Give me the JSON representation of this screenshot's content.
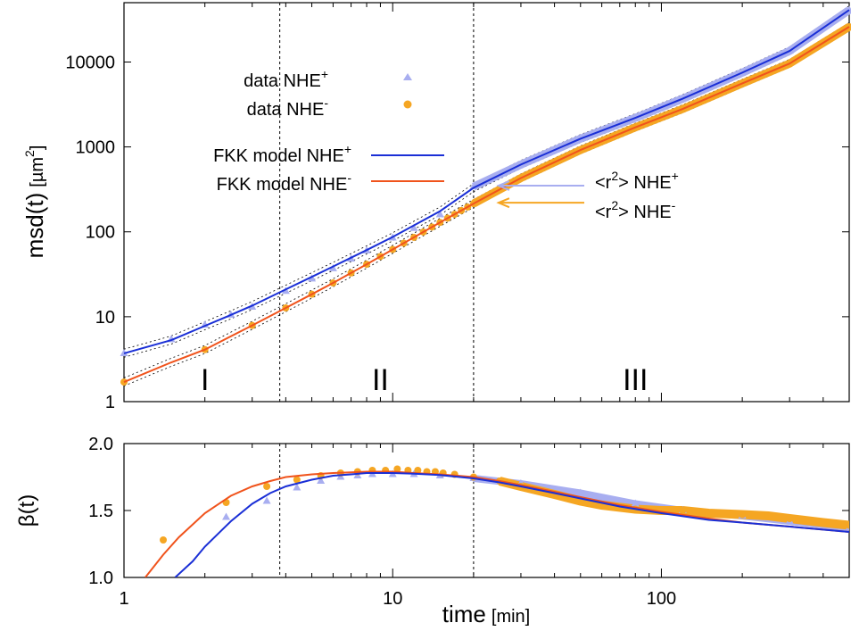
{
  "chart_data": [
    {
      "type": "line",
      "name_hint": "msd panel",
      "yscale": "log",
      "xscale": "log",
      "ylabel_main": "msd(t)",
      "ylabel_unit": "[µm",
      "ylabel_unit_sup": "2",
      "ylabel_unit_close": "]",
      "xlim": [
        1,
        500
      ],
      "ylim": [
        1,
        50000
      ],
      "yticks": [
        1,
        10,
        100,
        1000,
        10000
      ],
      "ytick_labels": [
        "1",
        "10",
        "100",
        "1000",
        "10000"
      ],
      "grid": false,
      "regions": [
        {
          "label": "I",
          "x": 2
        },
        {
          "label": "II",
          "x": 9
        },
        {
          "label": "III",
          "x": 80
        }
      ],
      "region_boundaries": [
        3.8,
        20
      ],
      "legend": [
        {
          "text": "data NHE",
          "sup": "+",
          "marker": "triangle",
          "color": "#a8aef0"
        },
        {
          "text": "data NHE",
          "sup": "-",
          "marker": "circle",
          "color": "#f5a623"
        },
        {
          "text": "FKK model NHE",
          "sup": "+",
          "marker": "line",
          "color": "#1a2fd6"
        },
        {
          "text": "FKK model NHE",
          "sup": "-",
          "marker": "line",
          "color": "#f0531c"
        }
      ],
      "annotations": [
        {
          "text": "<r",
          "sup1": "2",
          "text2": "> NHE",
          "sup2": "+",
          "color": "#a8aef0",
          "x_arrow": 20,
          "y_arrow": 350
        },
        {
          "text": "<r",
          "sup1": "2",
          "text2": "> NHE",
          "sup2": "-",
          "color": "#f5a623",
          "x_arrow": 20,
          "y_arrow": 220
        }
      ],
      "series": [
        {
          "name": "data NHE+",
          "kind": "triangle",
          "color": "#a8aef0",
          "x": [
            1,
            1.5,
            2,
            2.5,
            3,
            4,
            5,
            6,
            7,
            8,
            10,
            12,
            15,
            20,
            30,
            50,
            80,
            120,
            200,
            300,
            500
          ],
          "y": [
            3.7,
            5.4,
            8.0,
            10.5,
            13,
            20,
            28,
            37,
            48,
            60,
            85,
            110,
            160,
            340,
            620,
            1250,
            2200,
            3700,
            7500,
            13500,
            41000
          ]
        },
        {
          "name": "data NHE-",
          "kind": "circle",
          "color": "#f5a623",
          "x": [
            1,
            2,
            3,
            4,
            5,
            6,
            7,
            8,
            9,
            10,
            11,
            12,
            13,
            14,
            15,
            16,
            17,
            18,
            19,
            20,
            30,
            50,
            80,
            120,
            200,
            300,
            500
          ],
          "y": [
            1.7,
            4.1,
            7.9,
            12.7,
            18.4,
            25,
            32.8,
            41.5,
            51.3,
            62,
            73.5,
            86,
            99.5,
            114,
            129,
            145,
            161,
            178,
            196,
            215,
            430,
            920,
            1700,
            2800,
            5600,
            9600,
            26000
          ]
        },
        {
          "name": "FKK model NHE+",
          "kind": "line",
          "color": "#1a2fd6",
          "x": [
            1,
            1.5,
            2,
            2.5,
            3,
            4,
            5,
            6,
            8,
            10,
            15,
            20,
            30,
            50,
            80,
            120,
            200,
            300,
            500
          ],
          "y": [
            3.7,
            5.3,
            7.8,
            10.5,
            13.5,
            21,
            29.5,
            39,
            61,
            87,
            175,
            330,
            620,
            1250,
            2200,
            3700,
            7500,
            13500,
            41000
          ]
        },
        {
          "name": "FKK model NHE-",
          "kind": "line",
          "color": "#f0531c",
          "x": [
            1,
            1.5,
            2,
            3,
            4,
            5,
            6,
            8,
            10,
            15,
            20,
            30,
            50,
            80,
            120,
            200,
            300,
            500
          ],
          "y": [
            1.7,
            2.9,
            4.1,
            7.9,
            12.7,
            18.4,
            25,
            41.5,
            62,
            129,
            215,
            430,
            920,
            1700,
            2800,
            5600,
            9600,
            26000
          ]
        }
      ]
    },
    {
      "type": "line",
      "name_hint": "beta panel",
      "xscale": "log",
      "ylabel": "β(t)",
      "xlabel": "time",
      "xlabel_unit": "[min]",
      "xlim": [
        1,
        500
      ],
      "ylim": [
        1.0,
        2.0
      ],
      "yticks": [
        1.0,
        1.5,
        2.0
      ],
      "ytick_labels": [
        "1.0",
        "1.5",
        "2.0"
      ],
      "xticks": [
        1,
        10,
        100
      ],
      "xtick_labels": [
        "1",
        "10",
        "100"
      ],
      "region_boundaries": [
        3.8,
        20
      ],
      "series": [
        {
          "name": "data NHE+",
          "kind": "triangle",
          "color": "#a8aef0",
          "x": [
            2.4,
            3.4,
            4.4,
            5.4,
            6.4,
            7.4,
            8.4,
            10,
            12,
            15,
            20,
            30,
            50,
            80,
            120,
            200,
            300,
            500
          ],
          "y": [
            1.45,
            1.57,
            1.67,
            1.72,
            1.75,
            1.76,
            1.77,
            1.77,
            1.77,
            1.76,
            1.74,
            1.7,
            1.63,
            1.55,
            1.5,
            1.46,
            1.42,
            1.37
          ]
        },
        {
          "name": "data NHE-",
          "kind": "circle",
          "color": "#f5a623",
          "x": [
            1.4,
            2.4,
            3.4,
            4.4,
            5.4,
            6.4,
            7.4,
            8.4,
            9.4,
            10.4,
            11.4,
            12.4,
            13.4,
            14.4,
            15.4,
            17,
            20,
            25,
            30,
            40,
            50,
            60,
            80,
            100,
            120,
            150,
            200,
            250,
            300,
            400,
            500
          ],
          "y": [
            1.28,
            1.56,
            1.68,
            1.73,
            1.76,
            1.78,
            1.79,
            1.8,
            1.8,
            1.81,
            1.8,
            1.8,
            1.79,
            1.79,
            1.78,
            1.77,
            1.75,
            1.72,
            1.68,
            1.62,
            1.57,
            1.54,
            1.51,
            1.5,
            1.5,
            1.48,
            1.47,
            1.46,
            1.44,
            1.41,
            1.39
          ]
        },
        {
          "name": "FKK model NHE+",
          "kind": "line",
          "color": "#1a2fd6",
          "x": [
            1.55,
            1.8,
            2,
            2.5,
            3,
            3.5,
            4,
            5,
            6,
            7,
            8,
            10,
            12,
            15,
            20,
            25,
            30,
            40,
            50,
            70,
            100,
            150,
            200,
            300,
            500
          ],
          "y": [
            1.0,
            1.12,
            1.23,
            1.42,
            1.55,
            1.63,
            1.68,
            1.73,
            1.76,
            1.77,
            1.78,
            1.78,
            1.775,
            1.765,
            1.74,
            1.71,
            1.68,
            1.63,
            1.59,
            1.53,
            1.48,
            1.43,
            1.41,
            1.38,
            1.34
          ]
        },
        {
          "name": "FKK model NHE-",
          "kind": "line",
          "color": "#f0531c",
          "x": [
            1.2,
            1.4,
            1.6,
            2,
            2.5,
            3,
            3.5,
            4,
            5,
            6,
            8,
            10,
            12,
            15,
            20,
            25,
            30,
            40,
            50,
            70,
            100,
            150,
            200,
            300,
            500
          ],
          "y": [
            1.0,
            1.17,
            1.3,
            1.48,
            1.61,
            1.68,
            1.72,
            1.75,
            1.77,
            1.78,
            1.79,
            1.79,
            1.78,
            1.77,
            1.75,
            1.72,
            1.69,
            1.64,
            1.6,
            1.54,
            1.49,
            1.44,
            1.41,
            1.38,
            1.34
          ]
        }
      ]
    }
  ]
}
